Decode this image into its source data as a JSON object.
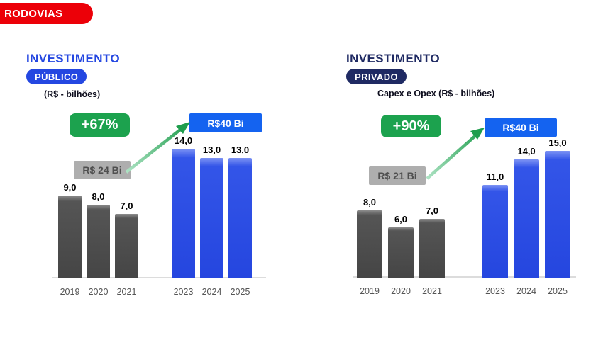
{
  "header": {
    "badge": "RODOVIAS",
    "badge_color": "#ec0008"
  },
  "chart_data": [
    {
      "type": "bar",
      "title": "INVESTIMENTO",
      "category_badge": "PÚBLICO",
      "subtitle": "(R$ - bilhões)",
      "growth_badge": "+67%",
      "from_label": "R$ 24 Bi",
      "target_label": "R$40 Bi",
      "categories": [
        "2019",
        "2020",
        "2021",
        "2023",
        "2024",
        "2025"
      ],
      "values": [
        9.0,
        8.0,
        7.0,
        14.0,
        13.0,
        13.0
      ],
      "value_labels": [
        "9,0",
        "8,0",
        "7,0",
        "14,0",
        "13,0",
        "13,0"
      ],
      "series_groups": [
        "historical",
        "historical",
        "historical",
        "projected",
        "projected",
        "projected"
      ],
      "ylim": [
        0,
        16
      ],
      "grid": "off",
      "legend": "none",
      "colors": {
        "accent": "#2447e1",
        "historical_bar": "#4c4c4c",
        "projected_bar": "#2849e3",
        "growth_badge_bg": "#1ca24e",
        "from_badge_bg": "#aeaeae",
        "target_badge_bg": "#1463f0",
        "arrow_start": "#aee3c4",
        "arrow_end": "#1f9e4d"
      }
    },
    {
      "type": "bar",
      "title": "INVESTIMENTO",
      "category_badge": "PRIVADO",
      "subtitle": "Capex e Opex (R$ - bilhões)",
      "growth_badge": "+90%",
      "from_label": "R$ 21 Bi",
      "target_label": "R$40 Bi",
      "categories": [
        "2019",
        "2020",
        "2021",
        "2023",
        "2024",
        "2025"
      ],
      "values": [
        8.0,
        6.0,
        7.0,
        11.0,
        14.0,
        15.0
      ],
      "value_labels": [
        "8,0",
        "6,0",
        "7,0",
        "11,0",
        "14,0",
        "15,0"
      ],
      "series_groups": [
        "historical",
        "historical",
        "historical",
        "projected",
        "projected",
        "projected"
      ],
      "ylim": [
        0,
        16
      ],
      "grid": "off",
      "legend": "none",
      "colors": {
        "accent": "#1f2a63",
        "historical_bar": "#4c4c4c",
        "projected_bar": "#2849e3",
        "growth_badge_bg": "#1ca24e",
        "from_badge_bg": "#aeaeae",
        "target_badge_bg": "#1463f0",
        "arrow_start": "#aee3c4",
        "arrow_end": "#1f9e4d"
      }
    }
  ]
}
